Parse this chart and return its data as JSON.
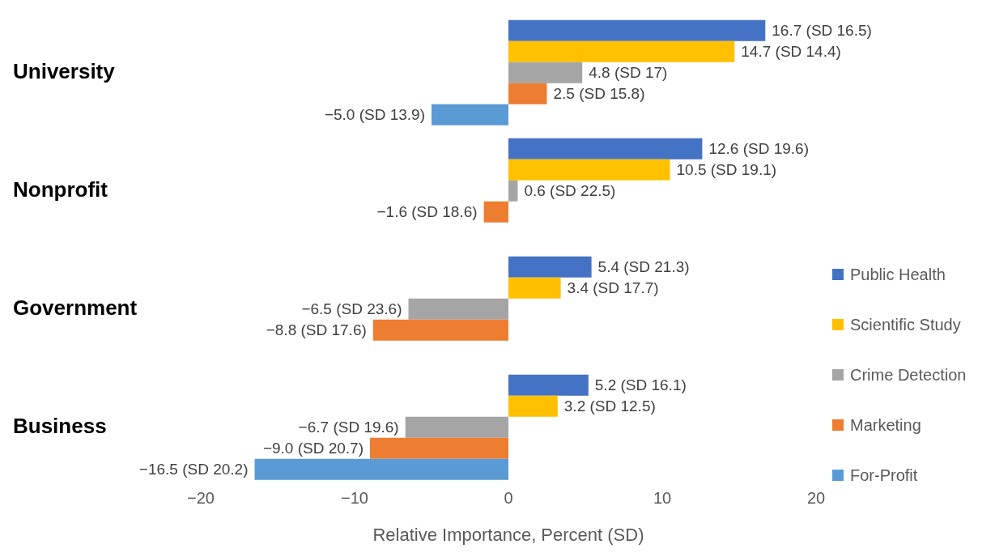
{
  "chart_data": {
    "type": "bar",
    "orientation": "horizontal",
    "xlabel": "Relative Importance, Percent (SD)",
    "categories": [
      "University",
      "Nonprofit",
      "Government",
      "Business"
    ],
    "xlim": [
      -20,
      20
    ],
    "xticks": [
      {
        "value": -20,
        "label": "−20"
      },
      {
        "value": -10,
        "label": "−10"
      },
      0,
      10,
      20
    ],
    "grid": false,
    "legend": "right",
    "series": [
      {
        "name": "Public Health",
        "color": "#4472c4",
        "values": [
          16.7,
          12.6,
          5.4,
          5.2
        ],
        "value_labels": [
          "16.7 (SD 16.5)",
          "12.6 (SD 19.6)",
          "5.4 (SD 21.3)",
          "5.2 (SD 16.1)"
        ]
      },
      {
        "name": "Scientific Study",
        "color": "#ffc000",
        "values": [
          14.7,
          10.5,
          3.4,
          3.2
        ],
        "value_labels": [
          "14.7 (SD 14.4)",
          "10.5 (SD 19.1)",
          "3.4 (SD 17.7)",
          "3.2 (SD 12.5)"
        ]
      },
      {
        "name": "Crime Detection",
        "color": "#a5a5a5",
        "values": [
          4.8,
          0.6,
          -6.5,
          -6.7
        ],
        "value_labels": [
          "4.8 (SD 17)",
          "0.6 (SD 22.5)",
          "−6.5 (SD 23.6)",
          "−6.7 (SD 19.6)"
        ]
      },
      {
        "name": "Marketing",
        "color": "#ed7d31",
        "values": [
          2.5,
          -1.6,
          -8.8,
          -9.0
        ],
        "value_labels": [
          "2.5 (SD 15.8)",
          "−1.6 (SD 18.6)",
          "−8.8 (SD 17.6)",
          "−9.0 (SD 20.7)"
        ]
      },
      {
        "name": "For-Profit",
        "color": "#5b9bd5",
        "values": [
          -5.0,
          null,
          null,
          -16.5
        ],
        "value_labels": [
          "−5.0 (SD 13.9)",
          null,
          null,
          "−16.5 (SD 20.2)"
        ]
      }
    ]
  }
}
